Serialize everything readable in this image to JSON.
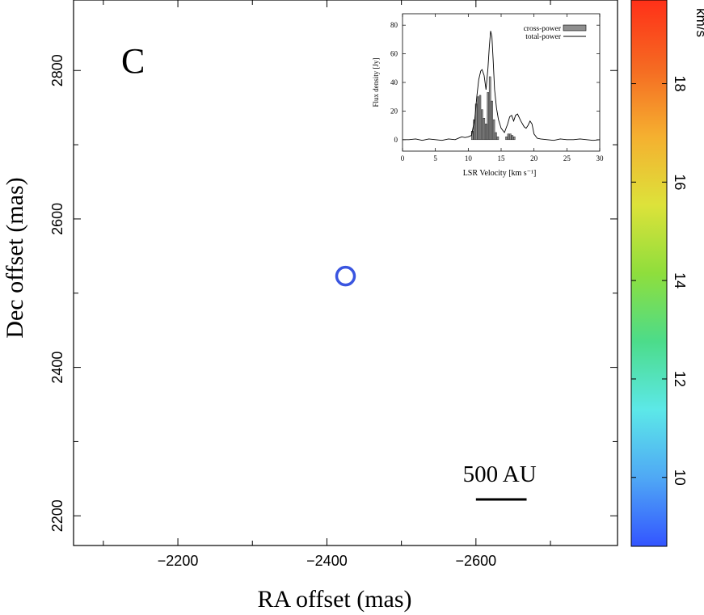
{
  "chart_data": [
    {
      "type": "scatter",
      "panel_label": "C",
      "xlabel": "RA offset (mas)",
      "ylabel": "Dec offset (mas)",
      "xlim": [
        -2060,
        -2790
      ],
      "ylim": [
        2160,
        2895
      ],
      "x_tick_values": [
        -2200,
        -2400,
        -2600
      ],
      "x_tick_labels": [
        "−2200",
        "−2400",
        "−2600"
      ],
      "y_tick_values": [
        2200,
        2400,
        2600,
        2800
      ],
      "y_tick_labels": [
        "2200",
        "2400",
        "2600",
        "2800"
      ],
      "points": [
        {
          "x": -2425,
          "y": 2523,
          "velocity": 9.6,
          "color": "#3a55e0"
        }
      ],
      "scale_bar_label": "500 AU",
      "scale_bar_ra": [
        -2600,
        -2668
      ],
      "scale_bar_dec": 2222,
      "colorbar": {
        "label": "km/s",
        "vmin": 8.6,
        "vmax": 19.7,
        "tick_values": [
          10,
          12,
          14,
          16,
          18
        ],
        "tick_labels": [
          "10",
          "12",
          "14",
          "16",
          "18"
        ],
        "colors": [
          "#3355ff",
          "#4fa8f5",
          "#5ce8e8",
          "#4cdc8a",
          "#8fde3c",
          "#dde23a",
          "#f5b030",
          "#f56a22",
          "#ff3018"
        ]
      }
    },
    {
      "type": "line",
      "title": "",
      "xlabel": "LSR Velocity [km s⁻¹]",
      "ylabel": "Flux density [Jy]",
      "xlim": [
        0,
        30
      ],
      "ylim": [
        -8,
        88
      ],
      "x_tick_values": [
        0,
        5,
        10,
        15,
        20,
        25,
        30
      ],
      "x_tick_labels": [
        "0",
        "5",
        "10",
        "15",
        "20",
        "25",
        "30"
      ],
      "y_tick_values": [
        0,
        20,
        40,
        60,
        80
      ],
      "y_tick_labels": [
        "0",
        "20",
        "40",
        "60",
        "80"
      ],
      "legend": [
        "cross-power",
        "total-power"
      ],
      "legend_position": "top-right",
      "series": [
        {
          "name": "total-power",
          "x": [
            0,
            1,
            2,
            3,
            4,
            5,
            6,
            7,
            8,
            8.5,
            9,
            9.5,
            10,
            10.5,
            11,
            11.3,
            11.6,
            11.9,
            12.1,
            12.4,
            12.7,
            13.0,
            13.2,
            13.4,
            13.6,
            13.8,
            14.0,
            14.3,
            14.6,
            15.0,
            15.5,
            16.0,
            16.3,
            16.6,
            16.9,
            17.2,
            17.5,
            18.0,
            18.5,
            18.8,
            19.1,
            19.4,
            19.7,
            20.0,
            20.5,
            21,
            22,
            23,
            24,
            25,
            26,
            27,
            28,
            29,
            30
          ],
          "y": [
            0,
            0,
            0.5,
            -0.5,
            0.5,
            0,
            -0.5,
            0.5,
            0,
            1,
            2,
            1.5,
            2,
            3,
            15,
            30,
            42,
            48,
            49,
            45,
            35,
            50,
            65,
            76,
            72,
            55,
            35,
            22,
            14,
            8,
            5,
            11,
            16,
            17,
            13,
            17,
            18,
            13,
            9,
            8,
            10,
            13,
            11,
            4,
            1,
            0.5,
            0,
            -0.5,
            0.5,
            0,
            0,
            0.5,
            0,
            -0.5,
            0
          ]
        },
        {
          "name": "cross-power",
          "x": [
            10.6,
            10.9,
            11.2,
            11.5,
            11.8,
            12.1,
            12.4,
            12.7,
            13.0,
            13.3,
            13.6,
            13.9,
            14.2,
            14.5,
            15.8,
            16.1,
            16.4,
            16.7,
            17.0
          ],
          "y": [
            6,
            14,
            25,
            30,
            31,
            21,
            15,
            11,
            33,
            44,
            27,
            14,
            5,
            2,
            2,
            4,
            4,
            3,
            2
          ]
        }
      ]
    }
  ]
}
